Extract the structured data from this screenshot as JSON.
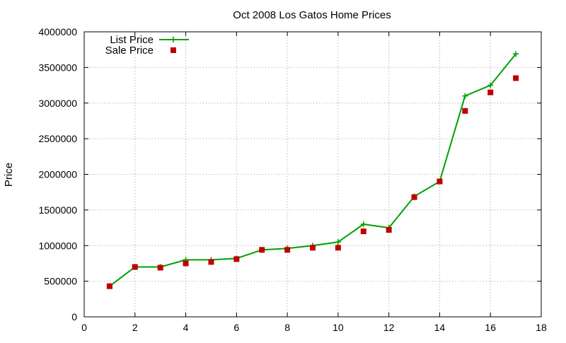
{
  "chart_data": {
    "type": "line",
    "title": "Oct 2008 Los Gatos Home Prices",
    "xlabel": "",
    "ylabel": "Price",
    "xlim": [
      0,
      18
    ],
    "ylim": [
      0,
      4000000
    ],
    "xticks": [
      "0",
      "2",
      "4",
      "6",
      "8",
      "10",
      "12",
      "14",
      "16",
      "18"
    ],
    "yticks": [
      "0",
      "500000",
      "1000000",
      "1500000",
      "2000000",
      "2500000",
      "3000000",
      "3500000",
      "4000000"
    ],
    "grid": true,
    "legend_position": "top-left",
    "series": [
      {
        "name": "List Price",
        "style": "line-with-plus-markers",
        "color": "#00a000",
        "x": [
          1,
          2,
          3,
          4,
          5,
          6,
          7,
          8,
          9,
          10,
          11,
          12,
          13,
          14,
          15,
          16,
          17
        ],
        "y": [
          430000,
          700000,
          700000,
          800000,
          800000,
          820000,
          940000,
          960000,
          1000000,
          1050000,
          1300000,
          1250000,
          1690000,
          1900000,
          3100000,
          3250000,
          3690000
        ]
      },
      {
        "name": "Sale Price",
        "style": "square-markers",
        "color": "#c00000",
        "x": [
          1,
          2,
          3,
          4,
          5,
          6,
          7,
          8,
          9,
          10,
          11,
          12,
          13,
          14,
          15,
          16,
          17
        ],
        "y": [
          430000,
          700000,
          690000,
          750000,
          770000,
          810000,
          940000,
          940000,
          970000,
          970000,
          1200000,
          1220000,
          1680000,
          1900000,
          2890000,
          3150000,
          3350000
        ]
      }
    ]
  }
}
